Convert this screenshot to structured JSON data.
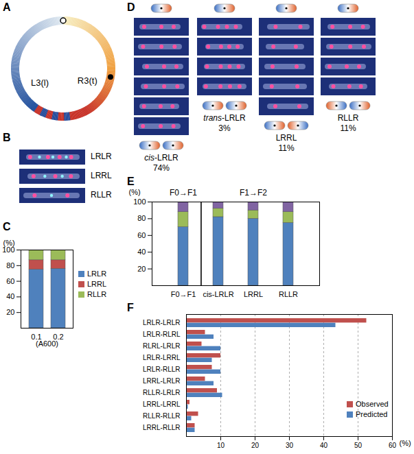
{
  "diagrams": {
    "A": {
      "letter": "A",
      "labels": [
        "L3(l)",
        "R3(t)"
      ]
    },
    "B": {
      "letter": "B",
      "rows": [
        "LRLR",
        "LRRL",
        "RLLR"
      ]
    },
    "D": {
      "letter": "D",
      "columns": [
        {
          "label": "cis-LRLR",
          "value": 74,
          "value_label": "74%"
        },
        {
          "label": "trans-LRLR",
          "value": 3,
          "value_label": "3%"
        },
        {
          "label": "LRRL",
          "value": 11,
          "value_label": "11%"
        },
        {
          "label": "RLLR",
          "value": 11,
          "value_label": "11%"
        }
      ]
    }
  },
  "chart_data": [
    {
      "panel": "C",
      "type": "bar",
      "stacked": true,
      "categories": [
        "0.1",
        "0.2"
      ],
      "x_label": "(A600)",
      "y_label": "(%)",
      "ylim": [
        0,
        100
      ],
      "yticks": [
        20,
        40,
        60,
        80,
        100
      ],
      "legend": "right",
      "series": [
        {
          "name": "LRLR",
          "color": "#4f81bd",
          "values": [
            75,
            76
          ]
        },
        {
          "name": "LRRL",
          "color": "#c0504d",
          "values": [
            12,
            11
          ]
        },
        {
          "name": "RLLR",
          "color": "#9bbb59",
          "values": [
            13,
            13
          ]
        }
      ]
    },
    {
      "panel": "E",
      "type": "bar",
      "stacked": true,
      "categories": [
        "F0→F1",
        "cis-LRLR",
        "LRRL",
        "RLLR"
      ],
      "annotations": [
        "F0→F1",
        "F1→F2"
      ],
      "y_label": "(%)",
      "ylim": [
        0,
        100
      ],
      "yticks": [
        20,
        40,
        60,
        80,
        100
      ],
      "series": [
        {
          "color": "#4f81bd",
          "values": [
            70,
            82,
            80,
            75
          ]
        },
        {
          "color": "#9bbb59",
          "values": [
            18,
            10,
            10,
            13
          ]
        },
        {
          "color": "#8064a2",
          "values": [
            12,
            8,
            10,
            12
          ]
        }
      ]
    },
    {
      "panel": "F",
      "type": "bar",
      "orientation": "horizontal",
      "categories": [
        "LRLR-LRLR",
        "LRLR-RLRL",
        "RLRL-LRLR",
        "LRLR-LRRL",
        "LRLR-RLLR",
        "LRRL-LRLR",
        "RLLR-LRLR",
        "LRRL-LRRL",
        "RLLR-RLLR",
        "LRRL-RLLR"
      ],
      "x_label": "(%)",
      "xlim": [
        0,
        60
      ],
      "xticks": [
        10,
        20,
        30,
        40,
        50,
        60
      ],
      "grid": true,
      "legend": "right",
      "series": [
        {
          "name": "Observed",
          "color": "#c0504d",
          "values": [
            52.5,
            5.5,
            4.5,
            10,
            7.5,
            5.5,
            9,
            1,
            3.5,
            2.5
          ]
        },
        {
          "name": "Predicted",
          "color": "#4f81bd",
          "values": [
            43.5,
            8,
            10,
            7.5,
            10,
            8,
            10.5,
            0.5,
            1.5,
            2.5
          ]
        }
      ]
    }
  ]
}
